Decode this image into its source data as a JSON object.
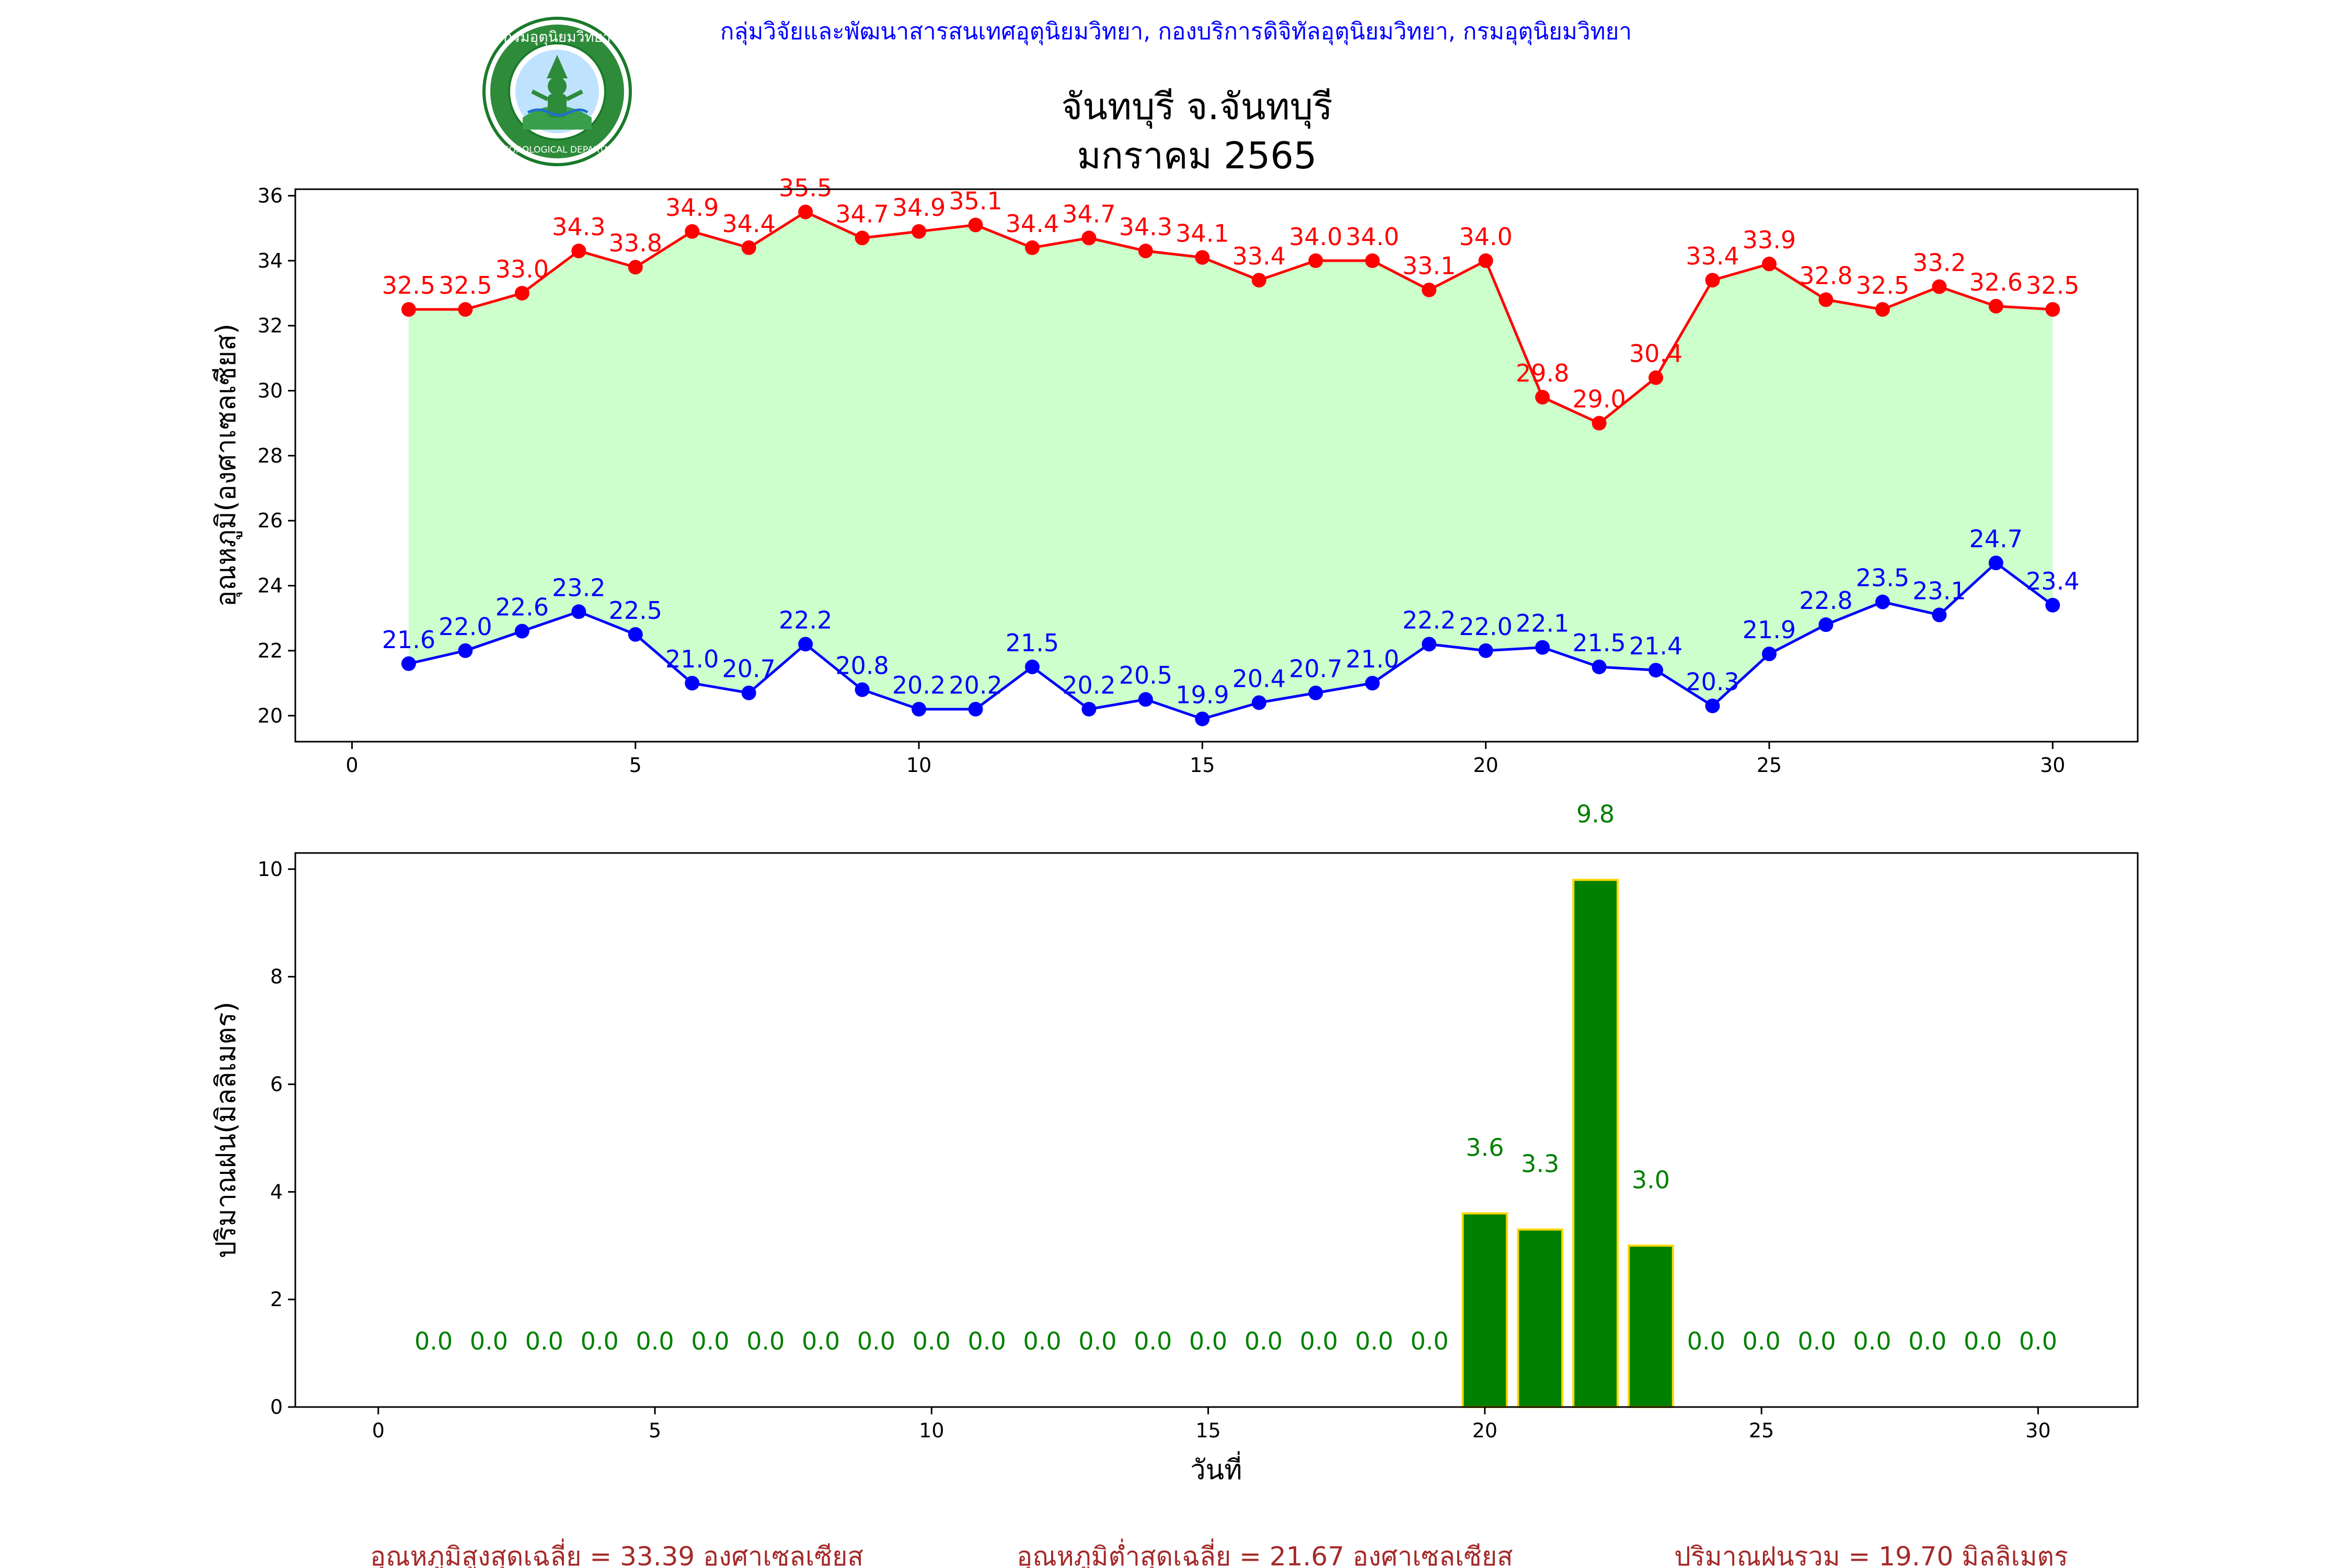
{
  "header": {
    "org_line": "กลุ่มวิจัยและพัฒนาสารสนเทศอุตุนิยมวิทยา, กองบริการดิจิทัลอุตุนิยมวิทยา, กรมอุตุนิยมวิทยา",
    "title_line1": "จันทบุรี จ.จันทบุรี",
    "title_line2": "มกราคม 2565",
    "logo_top_text": "กรมอุตุนิยมวิทยา",
    "logo_bottom_text": "METEOROLOGICAL DEPARTMENT"
  },
  "colors": {
    "org_text": "#0000ff",
    "max_line": "#ff0000",
    "min_line": "#0000ff",
    "fill_band": "#ccffcc",
    "rain_bar": "#008000",
    "rain_bar_edge": "#ffd700",
    "rain_label": "#008000",
    "summary_text": "#a52a2a"
  },
  "summary": {
    "avg_max": "อุณหภูมิสูงสุดเฉลี่ย = 33.39 องศาเซลเซียส",
    "avg_min": "อุณหภูมิต่ำสุดเฉลี่ย = 21.67 องศาเซลเซียส",
    "total_rain": "ปริมาณฝนรวม = 19.70 มิลลิเมตร"
  },
  "chart_data": [
    {
      "type": "line",
      "ylabel": "อุณหภูมิ(องศาเซลเซียส)",
      "xlabel": "",
      "xlim": [
        -1,
        31.5
      ],
      "ylim": [
        19.2,
        36.2
      ],
      "xticks": [
        0,
        5,
        10,
        15,
        20,
        25,
        30
      ],
      "yticks": [
        20,
        22,
        24,
        26,
        28,
        30,
        32,
        34,
        36
      ],
      "x": [
        1,
        2,
        3,
        4,
        5,
        6,
        7,
        8,
        9,
        10,
        11,
        12,
        13,
        14,
        15,
        16,
        17,
        18,
        19,
        20,
        21,
        22,
        23,
        24,
        25,
        26,
        27,
        28,
        29,
        30
      ],
      "series": [
        {
          "values": [
            32.5,
            32.5,
            33.0,
            34.3,
            33.8,
            34.9,
            34.4,
            35.5,
            34.7,
            34.9,
            35.1,
            34.4,
            34.7,
            34.3,
            34.1,
            33.4,
            34.0,
            34.0,
            33.1,
            34.0,
            29.8,
            29.0,
            30.4,
            33.4,
            33.9,
            32.8,
            32.5,
            33.2,
            32.6,
            32.5
          ]
        },
        {
          "values": [
            21.6,
            22.0,
            22.6,
            23.2,
            22.5,
            21.0,
            20.7,
            22.2,
            20.8,
            20.2,
            20.2,
            21.5,
            20.2,
            20.5,
            19.9,
            20.4,
            20.7,
            21.0,
            22.2,
            22.0,
            22.1,
            21.5,
            21.4,
            20.3,
            21.9,
            22.8,
            23.5,
            23.1,
            24.7,
            23.4
          ]
        }
      ],
      "fill_between": true,
      "grid": false
    },
    {
      "type": "bar",
      "ylabel": "ปริมาณฝน(มิลลิเมตร)",
      "xlabel": "วันที่",
      "xlim": [
        -1.5,
        31.8
      ],
      "ylim": [
        0,
        10.3
      ],
      "xticks": [
        0,
        5,
        10,
        15,
        20,
        25,
        30
      ],
      "yticks": [
        0,
        2,
        4,
        6,
        8,
        10
      ],
      "categories": [
        1,
        2,
        3,
        4,
        5,
        6,
        7,
        8,
        9,
        10,
        11,
        12,
        13,
        14,
        15,
        16,
        17,
        18,
        19,
        20,
        21,
        22,
        23,
        24,
        25,
        26,
        27,
        28,
        29,
        30
      ],
      "values": [
        0.0,
        0.0,
        0.0,
        0.0,
        0.0,
        0.0,
        0.0,
        0.0,
        0.0,
        0.0,
        0.0,
        0.0,
        0.0,
        0.0,
        0.0,
        0.0,
        0.0,
        0.0,
        0.0,
        3.6,
        3.3,
        9.8,
        3.0,
        0.0,
        0.0,
        0.0,
        0.0,
        0.0,
        0.0,
        0.0
      ],
      "grid": false
    }
  ]
}
